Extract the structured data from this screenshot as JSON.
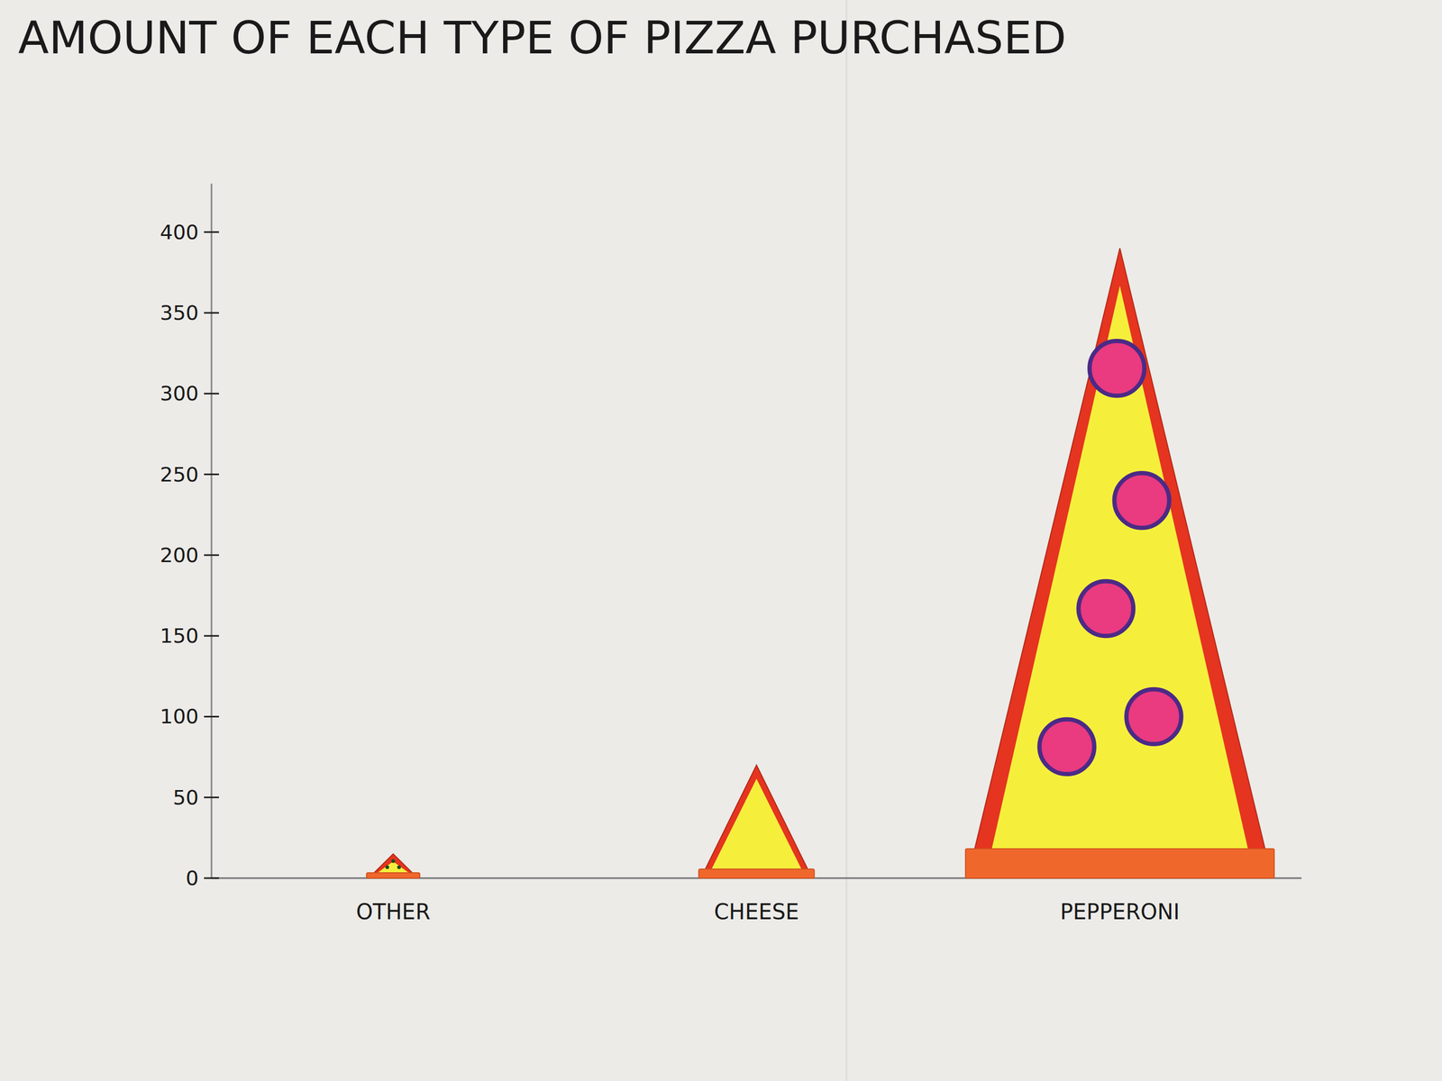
{
  "chart_data": {
    "type": "bar",
    "title": "AMOUNT OF EACH TYPE OF PIZZA PURCHASED",
    "categories": [
      "OTHER",
      "CHEESE",
      "PEPPERONI"
    ],
    "values": [
      15,
      70,
      390
    ],
    "color": "#f5ef3c",
    "ylim": [
      0,
      430
    ],
    "yticks": [
      0,
      50,
      100,
      150,
      200,
      250,
      300,
      350,
      400
    ],
    "grid": false
  }
}
